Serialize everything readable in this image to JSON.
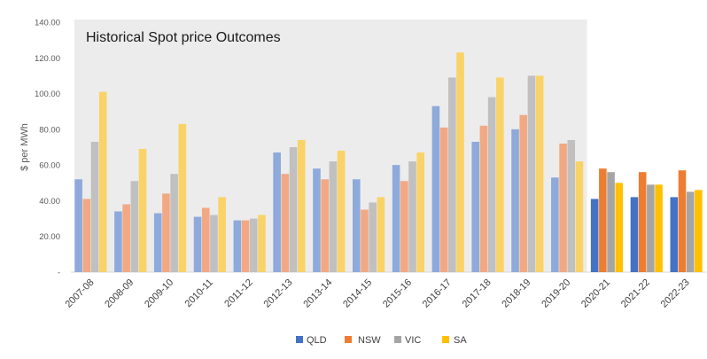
{
  "chart_data": {
    "type": "bar",
    "title": "Historical Spot price Outcomes",
    "ylabel": "$ per MWh",
    "xlabel": "",
    "ylim": [
      0,
      140
    ],
    "y_ticks": [
      "-",
      "20.00",
      "40.00",
      "60.00",
      "80.00",
      "100.00",
      "120.00",
      "140.00"
    ],
    "y_tick_values": [
      0,
      20,
      40,
      60,
      80,
      100,
      120,
      140
    ],
    "grid": false,
    "legend_position": "bottom",
    "shaded_region": {
      "from": "2007-08",
      "to": "2019-20",
      "color": "#ececec"
    },
    "categories": [
      "2007-08",
      "2008-09",
      "2009-10",
      "2010-11",
      "2011-12",
      "2012-13",
      "2013-14",
      "2014-15",
      "2015-16",
      "2016-17",
      "2017-18",
      "2018-19",
      "2019-20",
      "2020-21",
      "2021-22",
      "2022-23"
    ],
    "historical_count": 13,
    "series": [
      {
        "name": "QLD",
        "color": "#4472c4",
        "color_historical": "#8eaadb",
        "values": [
          52,
          34,
          33,
          31,
          29,
          67,
          58,
          52,
          60,
          93,
          73,
          80,
          53,
          41,
          42,
          42
        ]
      },
      {
        "name": "NSW",
        "color": "#ed7d31",
        "color_historical": "#f2a883",
        "values": [
          41,
          38,
          44,
          36,
          29,
          55,
          52,
          35,
          51,
          81,
          82,
          88,
          72,
          58,
          56,
          57
        ]
      },
      {
        "name": "VIC",
        "color": "#a5a5a5",
        "color_historical": "#c0c0c0",
        "values": [
          73,
          51,
          55,
          32,
          30,
          70,
          62,
          39,
          62,
          109,
          98,
          110,
          74,
          56,
          49,
          45
        ]
      },
      {
        "name": "SA",
        "color": "#ffc000",
        "color_historical": "#f9d367",
        "values": [
          101,
          69,
          83,
          42,
          32,
          74,
          68,
          42,
          67,
          123,
          109,
          110,
          62,
          50,
          49,
          46
        ]
      }
    ]
  }
}
